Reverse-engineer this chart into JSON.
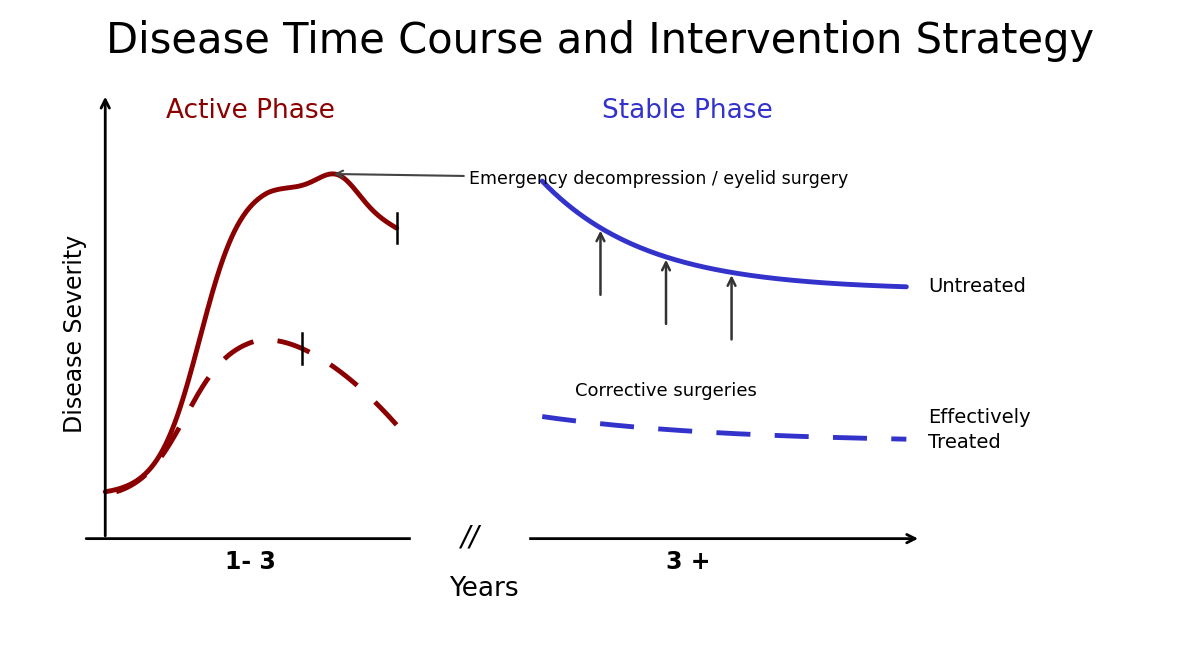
{
  "title": "Disease Time Course and Intervention Strategy",
  "title_fontsize": 30,
  "ylabel": "Disease Severity",
  "xlabel": "Years",
  "active_phase_label": "Active Phase",
  "stable_phase_label": "Stable Phase",
  "active_phase_color": "#8B0000",
  "stable_phase_color": "#3333CC",
  "untreated_label": "Untreated",
  "treated_label": "Effectively\nTreated",
  "annotation_emergency": "Emergency decompression / eyelid surgery",
  "annotation_corrective": "Corrective surgeries",
  "tick_label_1_3": "1- 3",
  "tick_label_3plus": "3 +",
  "background_color": "#ffffff",
  "corrective_arrow_color": "#333333"
}
